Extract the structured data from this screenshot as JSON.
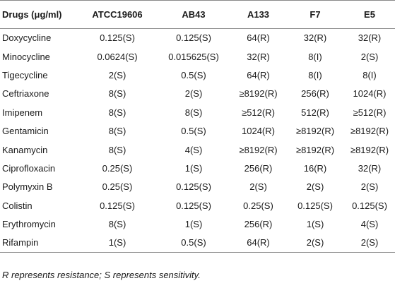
{
  "table": {
    "headers": [
      "Drugs (μg/ml)",
      "ATCC19606",
      "AB43",
      "A133",
      "F7",
      "E5"
    ],
    "rows": [
      [
        "Doxycycline",
        "0.125(S)",
        "0.125(S)",
        "64(R)",
        "32(R)",
        "32(R)"
      ],
      [
        "Minocycline",
        "0.0624(S)",
        "0.015625(S)",
        "32(R)",
        "8(I)",
        "2(S)"
      ],
      [
        "Tigecycline",
        "2(S)",
        "0.5(S)",
        "64(R)",
        "8(I)",
        "8(I)"
      ],
      [
        "Ceftriaxone",
        "8(S)",
        "2(S)",
        "≥8192(R)",
        "256(R)",
        "1024(R)"
      ],
      [
        "Imipenem",
        "8(S)",
        "8(S)",
        "≥512(R)",
        "512(R)",
        "≥512(R)"
      ],
      [
        "Gentamicin",
        "8(S)",
        "0.5(S)",
        "1024(R)",
        "≥8192(R)",
        "≥8192(R)"
      ],
      [
        "Kanamycin",
        "8(S)",
        "4(S)",
        "≥8192(R)",
        "≥8192(R)",
        "≥8192(R)"
      ],
      [
        "Ciprofloxacin",
        "0.25(S)",
        "1(S)",
        "256(R)",
        "16(R)",
        "32(R)"
      ],
      [
        "Polymyxin B",
        "0.25(S)",
        "0.125(S)",
        "2(S)",
        "2(S)",
        "2(S)"
      ],
      [
        "Colistin",
        "0.125(S)",
        "0.125(S)",
        "0.25(S)",
        "0.125(S)",
        "0.125(S)"
      ],
      [
        "Erythromycin",
        "8(S)",
        "1(S)",
        "256(R)",
        "1(S)",
        "4(S)"
      ],
      [
        "Rifampin",
        "1(S)",
        "0.5(S)",
        "64(R)",
        "2(S)",
        "2(S)"
      ]
    ]
  },
  "footnote": "R represents resistance; S represents sensitivity."
}
